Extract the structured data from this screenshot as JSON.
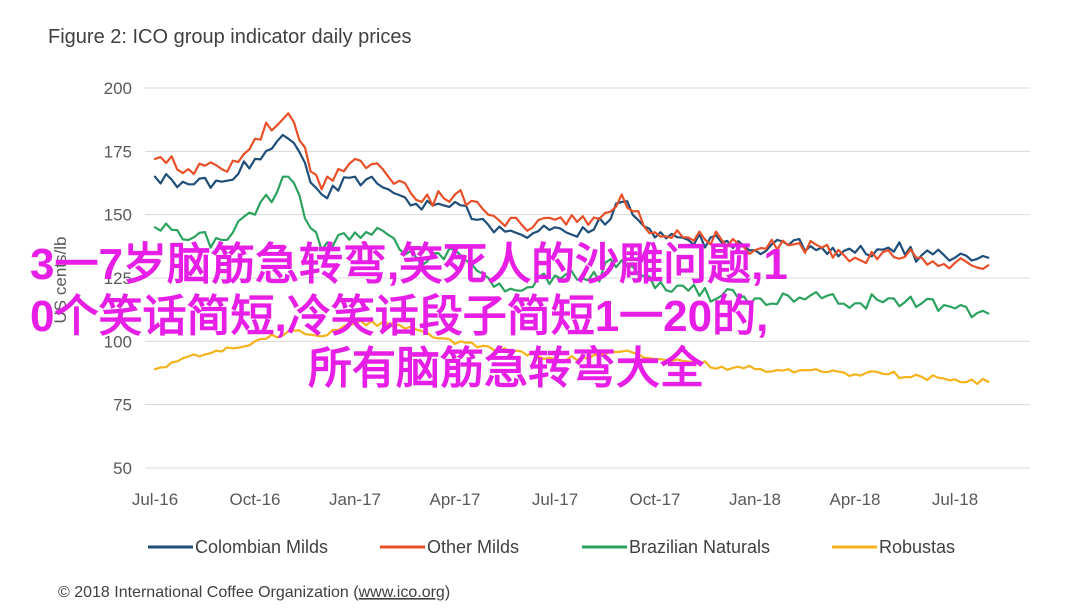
{
  "figure_title": "Figure 2: ICO group indicator daily prices",
  "copyright": {
    "prefix": "© 2018 International Coffee Organization (",
    "link": "www.ico.org",
    "suffix": ")"
  },
  "overlay_text": {
    "line1": "3一7岁脑筋急转弯,笑死人的沙雕问题,1",
    "line2": "0个笑话简短,冷笑话段子简短1一20的,",
    "line3": "所有脑筋急转弯大全"
  },
  "chart_data": {
    "type": "line",
    "ylabel": "US cents/lb",
    "ylim": [
      50,
      200
    ],
    "yticks": [
      50,
      75,
      100,
      125,
      150,
      175,
      200
    ],
    "xticks": [
      "Jul-16",
      "Oct-16",
      "Jan-17",
      "Apr-17",
      "Jul-17",
      "Oct-17",
      "Jan-18",
      "Apr-18",
      "Jul-18"
    ],
    "x": [
      "Jul-16",
      "Aug-16",
      "Sep-16",
      "Oct-16",
      "Nov-16",
      "Dec-16",
      "Jan-17",
      "Feb-17",
      "Mar-17",
      "Apr-17",
      "May-17",
      "Jun-17",
      "Jul-17",
      "Aug-17",
      "Sep-17",
      "Oct-17",
      "Nov-17",
      "Dec-17",
      "Jan-18",
      "Feb-18",
      "Mar-18",
      "Apr-18",
      "May-18",
      "Jun-18",
      "Jul-18",
      "Aug-18"
    ],
    "grid": true,
    "legend_position": "bottom",
    "series": [
      {
        "name": "Colombian Milds",
        "color": "#1f4e79",
        "values": [
          165,
          162,
          163,
          172,
          180,
          158,
          165,
          160,
          152,
          155,
          146,
          142,
          145,
          143,
          155,
          141,
          140,
          139,
          136,
          138,
          137,
          135,
          137,
          134,
          133,
          133
        ]
      },
      {
        "name": "Other Milds",
        "color": "#e8502a",
        "values": [
          172,
          168,
          168,
          180,
          190,
          160,
          172,
          165,
          155,
          158,
          150,
          146,
          148,
          146,
          158,
          143,
          141,
          140,
          136,
          138,
          137,
          133,
          136,
          133,
          131,
          130
        ]
      },
      {
        "name": "Brazilian Naturals",
        "color": "#2ca25f",
        "values": [
          145,
          140,
          140,
          150,
          165,
          136,
          143,
          142,
          130,
          136,
          125,
          120,
          126,
          124,
          132,
          121,
          120,
          118,
          117,
          118,
          117,
          115,
          117,
          115,
          113,
          111
        ]
      },
      {
        "name": "Robustas",
        "color": "#f5b31b",
        "values": [
          89,
          94,
          96,
          100,
          104,
          102,
          107,
          107,
          104,
          99,
          98,
          96,
          93,
          93,
          96,
          93,
          92,
          90,
          89,
          89,
          88,
          87,
          87,
          86,
          85,
          84
        ]
      }
    ]
  }
}
